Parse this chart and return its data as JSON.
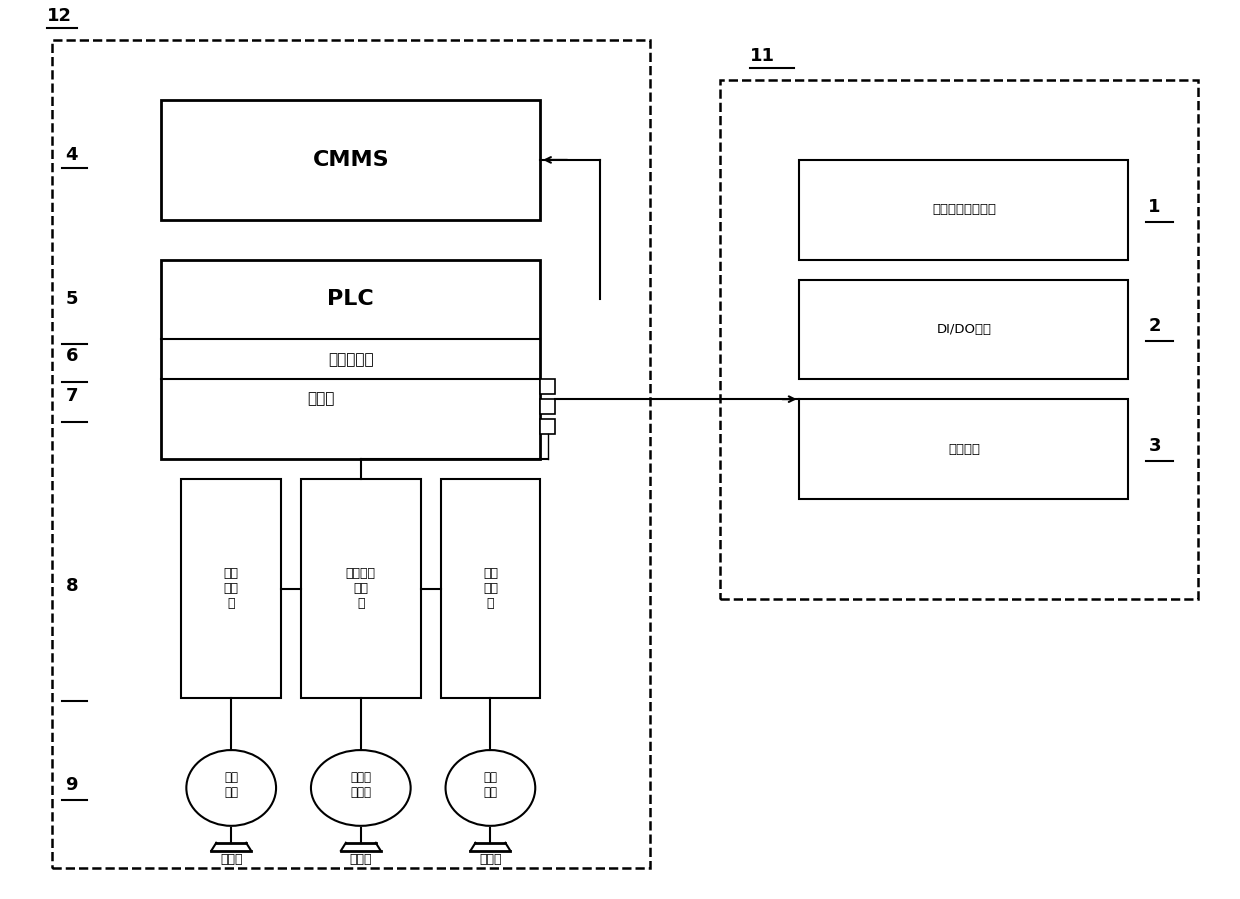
{
  "bg_color": "#ffffff",
  "fig_width": 12.4,
  "fig_height": 8.99,
  "label_12": "12",
  "label_11": "11",
  "label_4": "4",
  "label_5": "5",
  "label_6": "6",
  "label_7": "7",
  "label_8": "8",
  "label_9": "9",
  "label_1": "1",
  "label_2": "2",
  "label_3": "3",
  "text_CMMS": "CMMS",
  "text_PLC": "PLC",
  "text_ethernet": "以太网模块",
  "text_switch": "交换机",
  "text_lift_freq": "起升\n变频\n器",
  "text_tilt_freq": "傈仰小车\n变频\n器",
  "text_car_freq": "大车\n变频\n器",
  "text_lift_motor": "起升\n电机",
  "text_tilt_motor": "傈仰小\n车电机",
  "text_car_motor": "大车\n电机",
  "text_brake1": "制动器",
  "text_brake2": "制动器",
  "text_brake3": "制动器",
  "text_remote": "远程子站接口模块",
  "text_dido": "DI/DO模块",
  "text_panel": "操作面板"
}
